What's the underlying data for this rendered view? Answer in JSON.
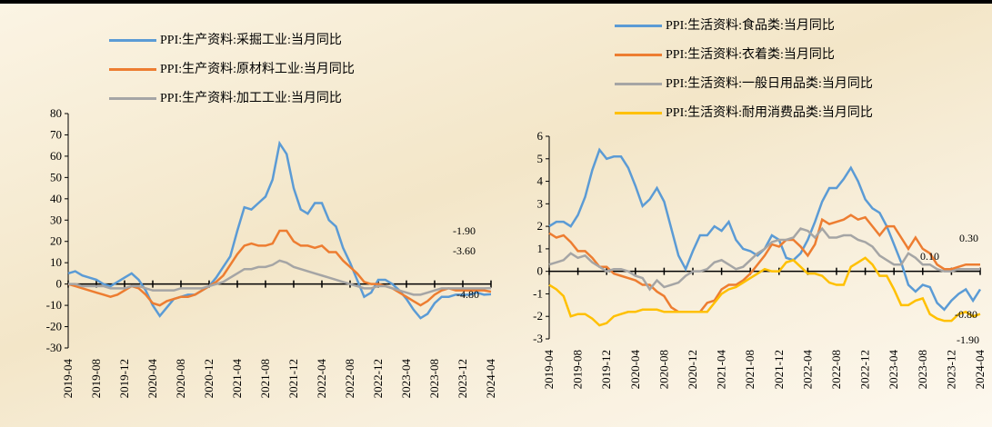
{
  "chart_data": [
    {
      "type": "line",
      "categories": [
        "2019-04",
        null,
        null,
        null,
        "2019-08",
        null,
        null,
        null,
        "2019-12",
        null,
        null,
        null,
        "2020-04",
        null,
        null,
        null,
        "2020-08",
        null,
        null,
        null,
        "2020-12",
        null,
        null,
        null,
        "2021-04",
        null,
        null,
        null,
        "2021-08",
        null,
        null,
        null,
        "2021-12",
        null,
        null,
        null,
        "2022-04",
        null,
        null,
        null,
        "2022-08",
        null,
        null,
        null,
        "2022-12",
        null,
        null,
        null,
        "2023-04",
        null,
        null,
        null,
        "2023-08",
        null,
        null,
        null,
        "2023-12",
        null,
        null,
        null,
        "2024-04"
      ],
      "ylim": [
        -30,
        80
      ],
      "yticks": [
        -30,
        -20,
        -10,
        0,
        10,
        20,
        30,
        40,
        50,
        60,
        70,
        80
      ],
      "series": [
        {
          "name": "PPI:生产资料:采掘工业:当月同比",
          "color": "#5b9bd5",
          "values": [
            5,
            6,
            4,
            3,
            2,
            0,
            -1,
            1,
            3,
            5,
            2,
            -3,
            -10,
            -15,
            -11,
            -7,
            -6,
            -5,
            -5,
            -3,
            -1,
            3,
            8,
            13,
            25,
            36,
            35,
            38,
            41,
            49,
            66,
            61,
            45,
            35,
            33,
            38,
            38,
            30,
            27,
            17,
            10,
            2,
            -6,
            -4,
            2,
            2,
            0,
            -3,
            -7,
            -12,
            -16,
            -14,
            -9,
            -6,
            -6,
            -5,
            -5,
            -5,
            -4,
            -5,
            -4.8
          ]
        },
        {
          "name": "PPI:生产资料:原材料工业:当月同比",
          "color": "#ed7d31",
          "values": [
            0,
            -1,
            -2,
            -3,
            -4,
            -5,
            -6,
            -5,
            -3,
            -1,
            -2,
            -5,
            -9,
            -10,
            -8,
            -7,
            -6,
            -6,
            -5,
            -3,
            -1,
            1,
            4,
            9,
            14,
            18,
            19,
            18,
            18,
            19,
            25,
            25,
            20,
            18,
            18,
            17,
            18,
            15,
            15,
            11,
            8,
            5,
            1,
            0,
            0,
            -1,
            -2,
            -4,
            -6,
            -8,
            -10,
            -8,
            -5,
            -3,
            -2,
            -3,
            -3,
            -3,
            -3,
            -3,
            -3.6
          ]
        },
        {
          "name": "PPI:生产资料:加工工业:当月同比",
          "color": "#a5a5a5",
          "values": [
            0,
            0,
            -1,
            -1,
            -1,
            -1,
            -2,
            -2,
            -2,
            -1,
            -1,
            -2,
            -3,
            -3,
            -3,
            -3,
            -2,
            -2,
            -2,
            -2,
            -1,
            0,
            1,
            3,
            5,
            7,
            7,
            8,
            8,
            9,
            11,
            10,
            8,
            7,
            6,
            5,
            4,
            3,
            2,
            1,
            0,
            -1,
            -2,
            -2,
            -1,
            -1,
            -2,
            -3,
            -4,
            -5,
            -5,
            -4,
            -3,
            -2,
            -2,
            -2,
            -2,
            -2,
            -2,
            -2,
            -1.9
          ]
        }
      ],
      "annotations": [
        "-1.90",
        "-3.60",
        "-4.80"
      ]
    },
    {
      "type": "line",
      "categories": [
        "2019-04",
        null,
        null,
        null,
        "2019-08",
        null,
        null,
        null,
        "2019-12",
        null,
        null,
        null,
        "2020-04",
        null,
        null,
        null,
        "2020-08",
        null,
        null,
        null,
        "2020-12",
        null,
        null,
        null,
        "2021-04",
        null,
        null,
        null,
        "2021-08",
        null,
        null,
        null,
        "2021-12",
        null,
        null,
        null,
        "2022-04",
        null,
        null,
        null,
        "2022-08",
        null,
        null,
        null,
        "2022-12",
        null,
        null,
        null,
        "2023-04",
        null,
        null,
        null,
        "2023-08",
        null,
        null,
        null,
        "2023-12",
        null,
        null,
        null,
        "2024-04"
      ],
      "ylim": [
        -3,
        6
      ],
      "yticks": [
        -3,
        -2,
        -1,
        0,
        1,
        2,
        3,
        4,
        5,
        6
      ],
      "series": [
        {
          "name": "PPI:生活资料:食品类:当月同比",
          "color": "#5b9bd5",
          "values": [
            2.0,
            2.2,
            2.2,
            2.0,
            2.5,
            3.3,
            4.5,
            5.4,
            5.0,
            5.1,
            5.1,
            4.6,
            3.8,
            2.9,
            3.2,
            3.7,
            3.1,
            1.9,
            0.7,
            0.1,
            0.9,
            1.6,
            1.6,
            2.0,
            1.8,
            2.2,
            1.4,
            1.0,
            0.9,
            0.7,
            1.0,
            1.6,
            1.4,
            0.6,
            0.5,
            0.8,
            1.4,
            2.2,
            3.1,
            3.7,
            3.7,
            4.1,
            4.6,
            4.0,
            3.2,
            2.8,
            2.6,
            2.0,
            1.2,
            0.4,
            -0.6,
            -0.9,
            -0.6,
            -0.7,
            -1.4,
            -1.7,
            -1.3,
            -1.0,
            -0.8,
            -1.3,
            -0.8
          ]
        },
        {
          "name": "PPI:生活资料:衣着类:当月同比",
          "color": "#ed7d31",
          "values": [
            1.7,
            1.5,
            1.6,
            1.3,
            0.9,
            0.9,
            0.6,
            0.2,
            0.2,
            -0.1,
            -0.2,
            -0.3,
            -0.4,
            -0.6,
            -0.6,
            -0.9,
            -1.1,
            -1.6,
            -1.8,
            -1.8,
            -1.8,
            -1.8,
            -1.4,
            -1.3,
            -0.8,
            -0.6,
            -0.6,
            -0.4,
            -0.1,
            0.3,
            0.7,
            1.2,
            1.1,
            1.4,
            1.4,
            1.1,
            0.7,
            1.2,
            2.3,
            2.1,
            2.2,
            2.3,
            2.5,
            2.3,
            2.4,
            2.0,
            1.6,
            2.0,
            2.0,
            1.5,
            1.0,
            1.5,
            1.0,
            0.8,
            0.3,
            0.1,
            0.1,
            0.2,
            0.3,
            0.3,
            0.3
          ]
        },
        {
          "name": "PPI:生活资料:一般日用品类:当月同比",
          "color": "#a5a5a5",
          "values": [
            0.3,
            0.4,
            0.5,
            0.8,
            0.6,
            0.7,
            0.4,
            0.2,
            0.0,
            0.1,
            0.1,
            0.0,
            -0.2,
            -0.3,
            -0.8,
            -0.4,
            -0.7,
            -0.6,
            -0.5,
            -0.2,
            0.0,
            0.0,
            0.1,
            0.4,
            0.5,
            0.3,
            0.1,
            0.2,
            0.5,
            0.8,
            1.0,
            1.3,
            1.4,
            1.4,
            1.5,
            1.9,
            1.8,
            1.5,
            1.9,
            1.5,
            1.5,
            1.6,
            1.6,
            1.4,
            1.3,
            1.1,
            0.7,
            0.5,
            0.3,
            0.3,
            0.8,
            0.6,
            0.3,
            0.3,
            0.1,
            0.0,
            0.0,
            0.1,
            0.1,
            0.1,
            0.1
          ]
        },
        {
          "name": "PPI:生活资料:耐用消费品类:当月同比",
          "color": "#ffc000",
          "values": [
            -0.6,
            -0.8,
            -1.1,
            -2.0,
            -1.9,
            -1.9,
            -2.1,
            -2.4,
            -2.3,
            -2.0,
            -1.9,
            -1.8,
            -1.8,
            -1.7,
            -1.7,
            -1.7,
            -1.8,
            -1.8,
            -1.8,
            -1.8,
            -1.8,
            -1.8,
            -1.8,
            -1.4,
            -1.0,
            -0.8,
            -0.7,
            -0.5,
            -0.3,
            -0.1,
            0.1,
            0.0,
            0.0,
            0.4,
            0.5,
            0.2,
            -0.1,
            -0.1,
            -0.2,
            -0.5,
            -0.6,
            -0.6,
            0.2,
            0.4,
            0.6,
            0.3,
            -0.2,
            -0.2,
            -0.8,
            -1.5,
            -1.5,
            -1.3,
            -1.2,
            -1.9,
            -2.1,
            -2.2,
            -2.2,
            -1.9,
            -1.8,
            -2.0,
            -1.9
          ]
        }
      ],
      "annotations": [
        "0.30",
        "0.10",
        "-0.80",
        "-1.90"
      ]
    }
  ]
}
